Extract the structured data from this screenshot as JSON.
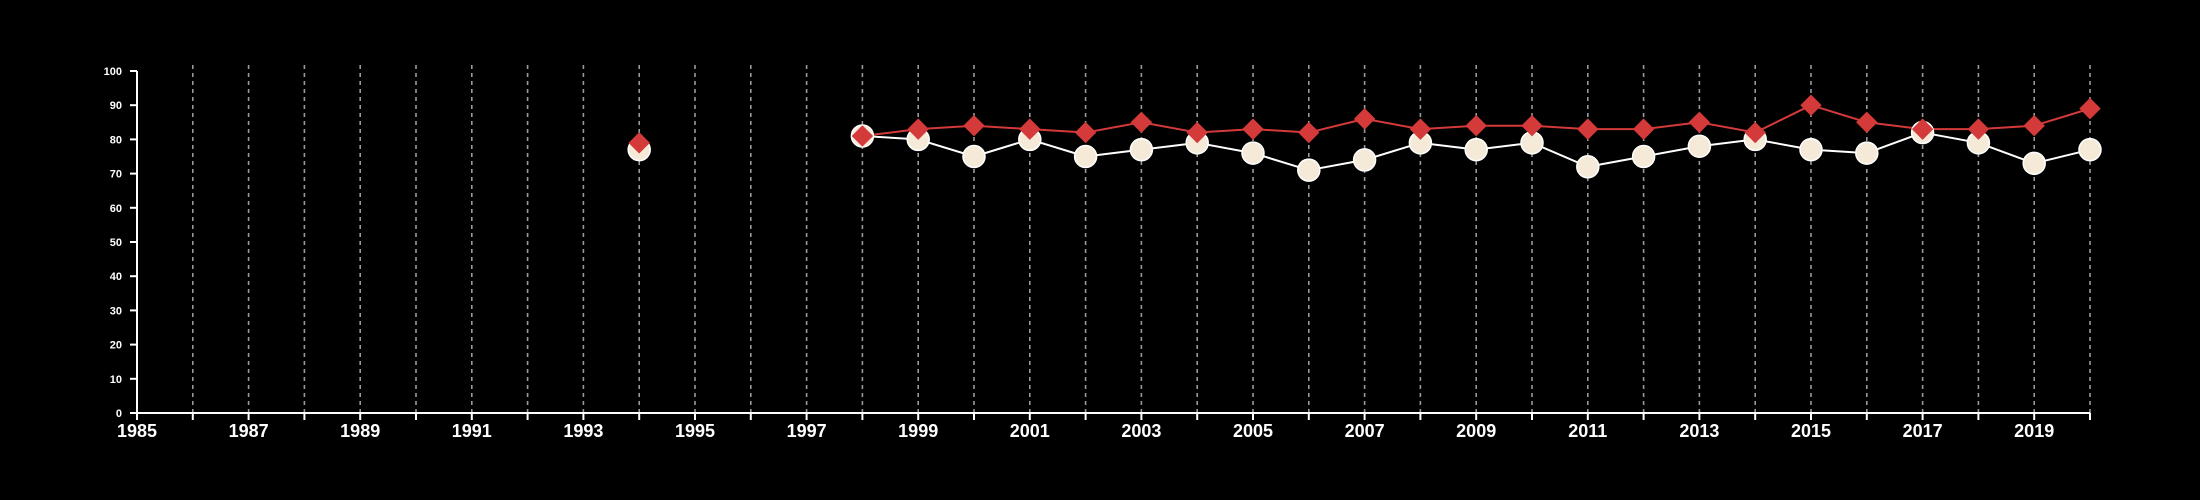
{
  "chart_data": {
    "type": "line",
    "title": "",
    "xlabel": "",
    "ylabel": "",
    "xlim": [
      1985,
      2020
    ],
    "ylim": [
      0,
      100
    ],
    "x_ticks": [
      1985,
      1987,
      1989,
      1991,
      1993,
      1995,
      1997,
      1999,
      2001,
      2003,
      2005,
      2007,
      2009,
      2011,
      2013,
      2015,
      2017,
      2019
    ],
    "y_ticks": [
      0,
      10,
      20,
      30,
      40,
      50,
      60,
      70,
      80,
      90,
      100
    ],
    "grid": "vertical dashed lines at every year",
    "legend": "none",
    "background_color": "#000000",
    "series": [
      {
        "marker": "circle",
        "color": "#f5e9d8",
        "line_color": "#ffffff",
        "points": [
          {
            "x": 1994,
            "y": 77
          },
          {
            "x": 1998,
            "y": 81
          },
          {
            "x": 1999,
            "y": 80
          },
          {
            "x": 2000,
            "y": 75
          },
          {
            "x": 2001,
            "y": 80
          },
          {
            "x": 2002,
            "y": 75
          },
          {
            "x": 2003,
            "y": 77
          },
          {
            "x": 2004,
            "y": 79
          },
          {
            "x": 2005,
            "y": 76
          },
          {
            "x": 2006,
            "y": 71
          },
          {
            "x": 2007,
            "y": 74
          },
          {
            "x": 2008,
            "y": 79
          },
          {
            "x": 2009,
            "y": 77
          },
          {
            "x": 2010,
            "y": 79
          },
          {
            "x": 2011,
            "y": 72
          },
          {
            "x": 2012,
            "y": 75
          },
          {
            "x": 2013,
            "y": 78
          },
          {
            "x": 2014,
            "y": 80
          },
          {
            "x": 2015,
            "y": 77
          },
          {
            "x": 2016,
            "y": 76
          },
          {
            "x": 2017,
            "y": 82
          },
          {
            "x": 2018,
            "y": 79
          },
          {
            "x": 2019,
            "y": 73
          },
          {
            "x": 2020,
            "y": 77
          }
        ]
      },
      {
        "marker": "diamond",
        "color": "#d43a3a",
        "line_color": "#d43a3a",
        "points": [
          {
            "x": 1994,
            "y": 79
          },
          {
            "x": 1998,
            "y": 81
          },
          {
            "x": 1999,
            "y": 83
          },
          {
            "x": 2000,
            "y": 84
          },
          {
            "x": 2001,
            "y": 83
          },
          {
            "x": 2002,
            "y": 82
          },
          {
            "x": 2003,
            "y": 85
          },
          {
            "x": 2004,
            "y": 82
          },
          {
            "x": 2005,
            "y": 83
          },
          {
            "x": 2006,
            "y": 82
          },
          {
            "x": 2007,
            "y": 86
          },
          {
            "x": 2008,
            "y": 83
          },
          {
            "x": 2009,
            "y": 84
          },
          {
            "x": 2010,
            "y": 84
          },
          {
            "x": 2011,
            "y": 83
          },
          {
            "x": 2012,
            "y": 83
          },
          {
            "x": 2013,
            "y": 85
          },
          {
            "x": 2014,
            "y": 82
          },
          {
            "x": 2015,
            "y": 90
          },
          {
            "x": 2016,
            "y": 85
          },
          {
            "x": 2017,
            "y": 83
          },
          {
            "x": 2018,
            "y": 83
          },
          {
            "x": 2019,
            "y": 84
          },
          {
            "x": 2020,
            "y": 89
          }
        ]
      }
    ]
  }
}
